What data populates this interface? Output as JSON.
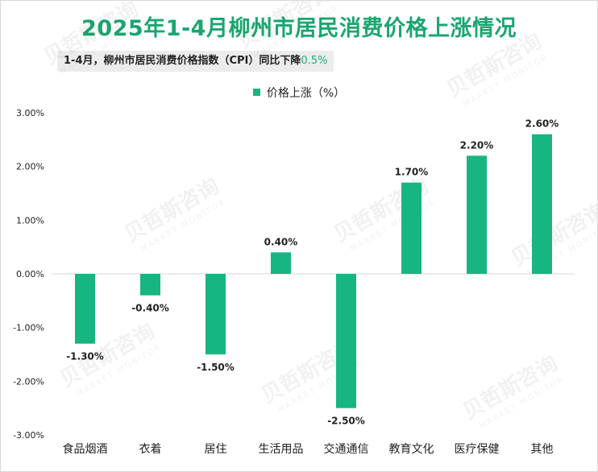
{
  "page": {
    "title": "2025年1-4月柳州市居民消费价格上涨情况",
    "subtitle_prefix": "1-4月，柳州市居民消费价格指数（CPI）同比下降",
    "subtitle_highlight": "0.5%",
    "watermark_text": "贝哲斯咨询",
    "watermark_subtext": "MARKET MONITOR"
  },
  "colors": {
    "bar": "#17b582",
    "title": "#1aa66f",
    "highlight": "#18b07b",
    "axis_text": "#222222",
    "gridline": "#d9d9d9"
  },
  "chart_data": {
    "type": "bar",
    "categories": [
      "食品烟酒",
      "衣着",
      "居住",
      "生活用品",
      "交通通信",
      "教育文化",
      "医疗保健",
      "其他"
    ],
    "series": [
      {
        "name": "价格上涨（%）",
        "values": [
          -1.3,
          -0.4,
          -1.5,
          0.4,
          -2.5,
          1.7,
          2.2,
          2.6
        ],
        "labels": [
          "-1.30%",
          "-0.40%",
          "-1.50%",
          "0.40%",
          "-2.50%",
          "1.70%",
          "2.20%",
          "2.60%"
        ]
      }
    ],
    "yticks": [
      3,
      2,
      1,
      0,
      -1,
      -2,
      -3
    ],
    "ytick_labels": [
      "3.00%",
      "2.00%",
      "1.00%",
      "0.00%",
      "-1.00%",
      "-2.00%",
      "-3.00%"
    ],
    "ylim": [
      -3,
      3
    ],
    "legend_position": "top-center",
    "grid": false
  }
}
